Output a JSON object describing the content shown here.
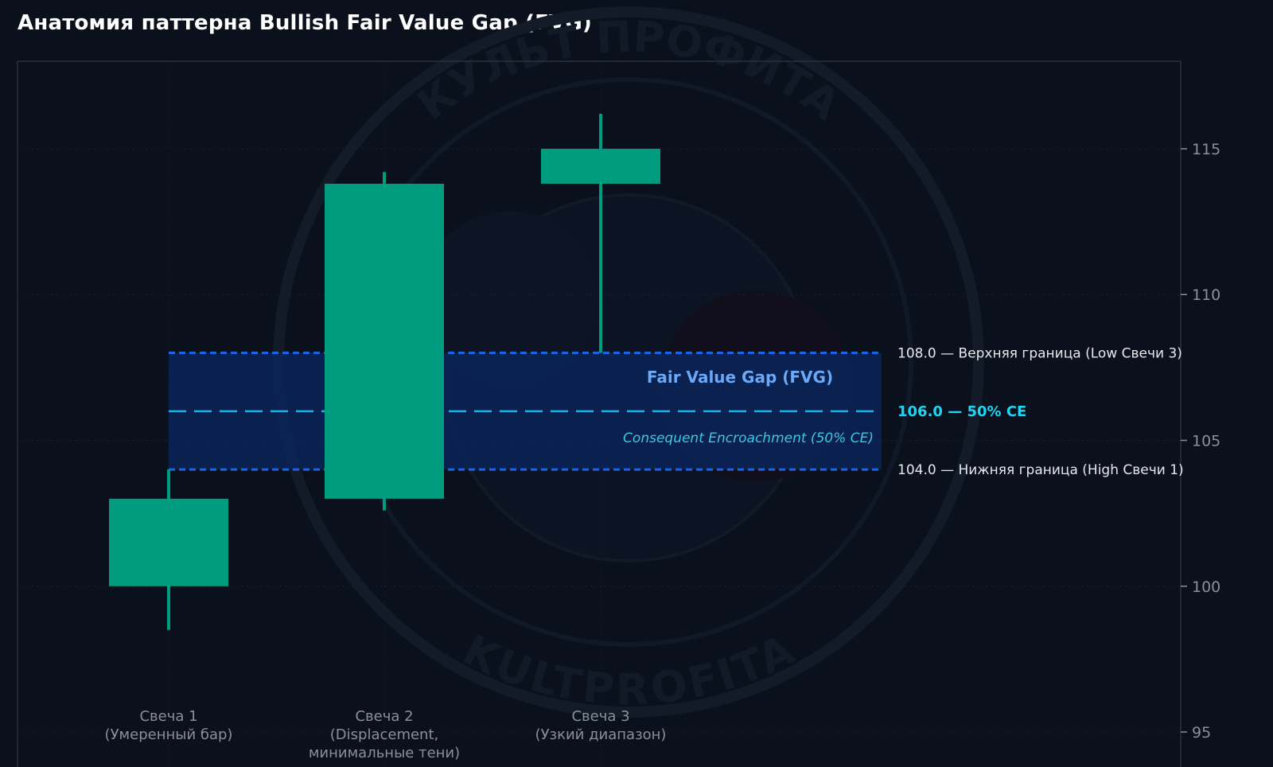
{
  "title": "Анатомия паттерна Bullish Fair Value Gap (FVG)",
  "watermark": {
    "top_text": "КУЛЬТ ПРОФИТА",
    "bottom_text": "KULTPROFITA"
  },
  "colors": {
    "background": "#0a101c",
    "candle": "#009c80",
    "zone_fill": "#0a2458",
    "zone_border": "#1a64e8",
    "ce_line": "#18b4e8",
    "ce_text": "#1ed6f2",
    "zone_title": "#6aa8f8"
  },
  "chart_data": {
    "type": "candlestick",
    "title": "Анатомия паттерна Bullish Fair Value Gap (FVG)",
    "ylim": [
      93.8,
      118
    ],
    "yticks": [
      95,
      100,
      105,
      110,
      115
    ],
    "y_axis_side": "right",
    "grid": true,
    "candles": [
      {
        "label_line1": "Свеча 1",
        "label_line2": "(Умеренный бар)",
        "label_line3": "",
        "open": 100.0,
        "high": 104.0,
        "low": 98.5,
        "close": 103.0
      },
      {
        "label_line1": "Свеча 2",
        "label_line2": "(Displacement,",
        "label_line3": "минимальные тени)",
        "open": 103.0,
        "high": 114.2,
        "low": 102.6,
        "close": 113.8
      },
      {
        "label_line1": "Свеча 3",
        "label_line2": "(Узкий диапазон)",
        "label_line3": "",
        "open": 113.8,
        "high": 116.2,
        "low": 108.0,
        "close": 115.0
      }
    ],
    "fvg_zone": {
      "upper": 108.0,
      "lower": 104.0,
      "ce": 106.0,
      "name": "Fair Value Gap (FVG)",
      "ce_name": "Consequent Encroachment (50% CE)"
    },
    "annotations": {
      "upper": "108.0 — Верхняя граница (Low Свечи 3)",
      "ce": "106.0 — 50% CE",
      "lower": "104.0 — Нижняя граница (High Свечи 1)"
    }
  }
}
